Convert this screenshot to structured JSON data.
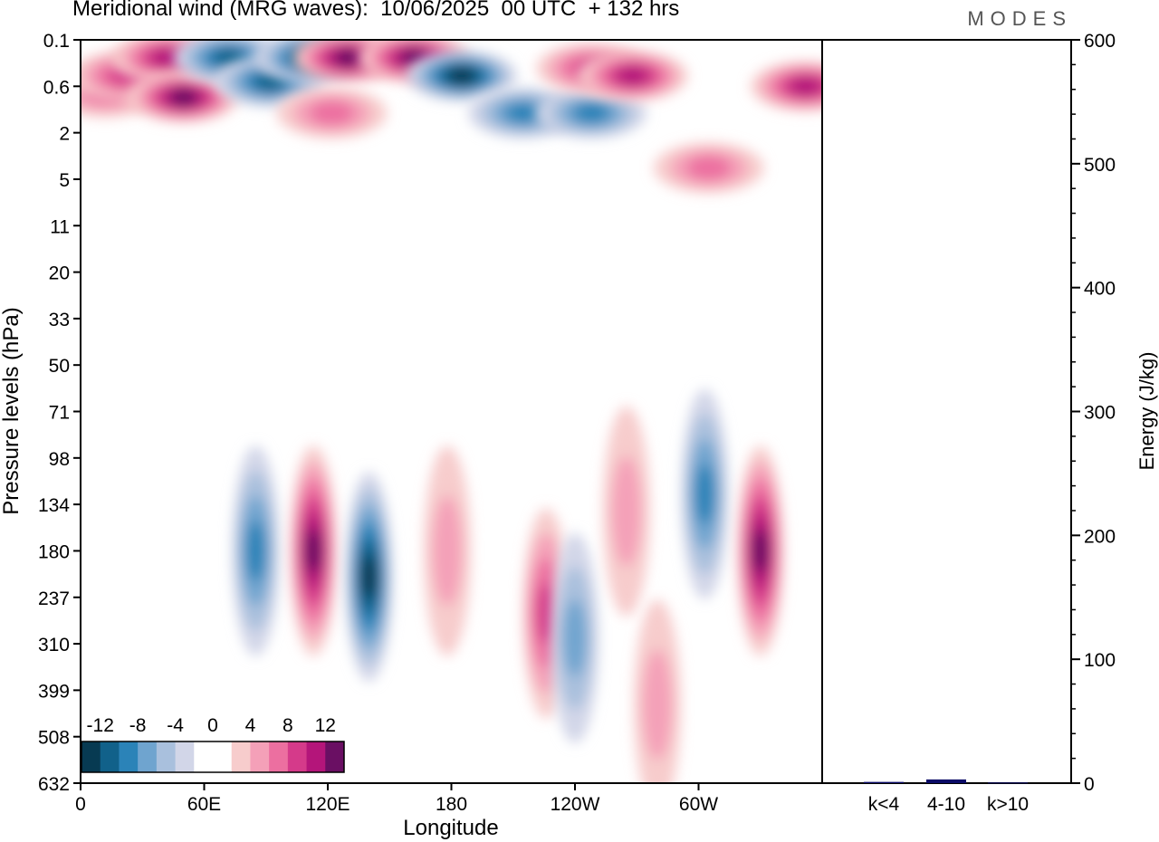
{
  "header": {
    "title": "Meridional wind (MRG waves):  10/06/2025  00 UTC  + 132 hrs",
    "brand": "MODES"
  },
  "chart_data": [
    {
      "type": "heatmap",
      "title": "Meridional wind (MRG waves):  10/06/2025  00 UTC  + 132 hrs",
      "xlabel": "Longitude",
      "ylabel": "Pressure levels (hPa)",
      "x_ticks": [
        "0",
        "60E",
        "120E",
        "180",
        "120W",
        "60W"
      ],
      "x_tick_degrees": [
        0,
        60,
        120,
        180,
        240,
        300
      ],
      "xlim": [
        0,
        360
      ],
      "y_ticks": [
        "0.1",
        "0.6",
        "2",
        "5",
        "11",
        "20",
        "33",
        "50",
        "71",
        "98",
        "134",
        "180",
        "237",
        "310",
        "399",
        "508",
        "632"
      ],
      "colorbar": {
        "labels": [
          "-12",
          "-8",
          "-4",
          "0",
          "4",
          "8",
          "12"
        ],
        "colors": [
          "#073a52",
          "#11618a",
          "#2b83b8",
          "#6fa4cf",
          "#a9c0dd",
          "#d2d6e8",
          "#ffffff",
          "#ffffff",
          "#f7cccc",
          "#f4a0b8",
          "#ec6fa0",
          "#d53a8a",
          "#b4157a",
          "#6a0f63"
        ]
      },
      "features": [
        {
          "lon": 12,
          "level": 0.7,
          "value": 8
        },
        {
          "lon": 22,
          "level": 0.4,
          "value": 10
        },
        {
          "lon": 42,
          "level": 0.2,
          "value": 12
        },
        {
          "lon": 50,
          "level": 0.8,
          "value": 14
        },
        {
          "lon": 72,
          "level": 0.2,
          "value": -12
        },
        {
          "lon": 92,
          "level": 0.5,
          "value": -12
        },
        {
          "lon": 112,
          "level": 0.2,
          "value": -14
        },
        {
          "lon": 130,
          "level": 0.2,
          "value": 14
        },
        {
          "lon": 162,
          "level": 0.2,
          "value": 14
        },
        {
          "lon": 185,
          "level": 0.4,
          "value": -16
        },
        {
          "lon": 215,
          "level": 1.2,
          "value": -10
        },
        {
          "lon": 248,
          "level": 1.2,
          "value": -10
        },
        {
          "lon": 248,
          "level": 0.3,
          "value": 10
        },
        {
          "lon": 268,
          "level": 0.4,
          "value": 12
        },
        {
          "lon": 352,
          "level": 0.6,
          "value": 12
        },
        {
          "lon": 122,
          "level": 1.2,
          "value": 8
        },
        {
          "lon": 305,
          "level": 4,
          "value": 8
        },
        {
          "lon": 85,
          "level": 180,
          "value": -10
        },
        {
          "lon": 113,
          "level": 180,
          "value": 14
        },
        {
          "lon": 140,
          "level": 210,
          "value": -14
        },
        {
          "lon": 178,
          "level": 180,
          "value": 6
        },
        {
          "lon": 226,
          "level": 260,
          "value": 10
        },
        {
          "lon": 240,
          "level": 300,
          "value": -8
        },
        {
          "lon": 265,
          "level": 140,
          "value": 6
        },
        {
          "lon": 303,
          "level": 125,
          "value": -10
        },
        {
          "lon": 330,
          "level": 180,
          "value": 14
        },
        {
          "lon": 280,
          "level": 430,
          "value": 6
        }
      ]
    },
    {
      "type": "bar",
      "categories": [
        "k<4",
        "4-10",
        "k>10"
      ],
      "values": [
        1,
        3,
        0.5
      ],
      "ylabel": "Energy (J/kg)",
      "ylim": [
        0,
        600
      ],
      "y_ticks": [
        0,
        100,
        200,
        300,
        400,
        500,
        600
      ]
    }
  ]
}
